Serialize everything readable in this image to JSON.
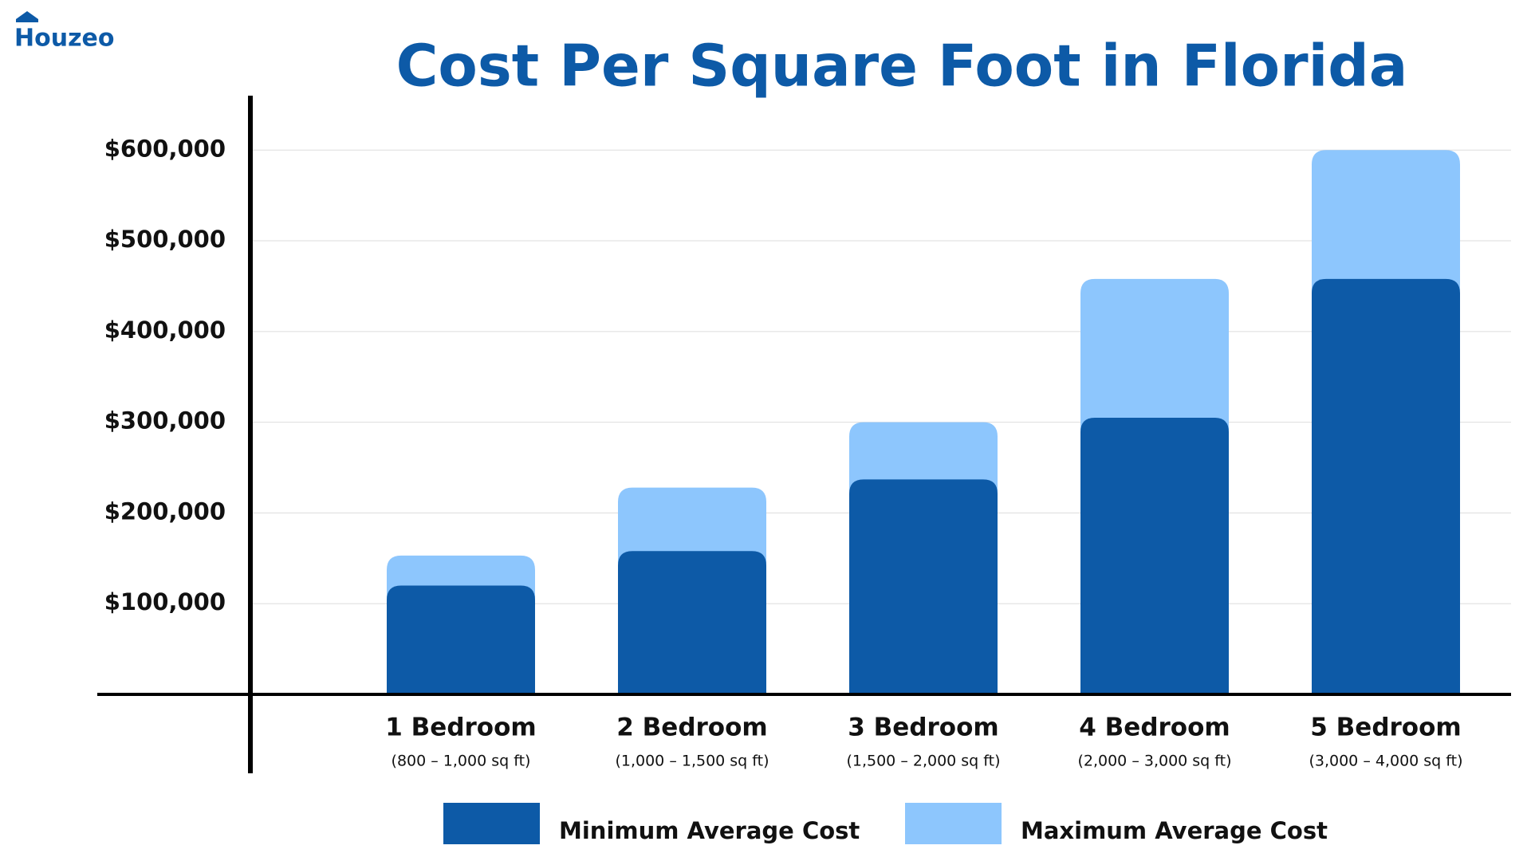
{
  "brand": "Houzeo",
  "chart_data": {
    "type": "overlap-bar",
    "title": "Cost Per Square Foot in Florida",
    "categories": [
      "1 Bedroom",
      "2 Bedroom",
      "3 Bedroom",
      "4 Bedroom",
      "5 Bedroom"
    ],
    "category_notes": [
      "(800 – 1,000 sq ft)",
      "(1,000 – 1,500 sq ft)",
      "(1,500 – 2,000 sq ft)",
      "(2,000 – 3,000 sq ft)",
      "(3,000 – 4,000 sq ft)"
    ],
    "series": [
      {
        "name": "Minimum Average Cost",
        "color": "#0d5aa7",
        "values": [
          120000,
          158000,
          237000,
          305000,
          458000
        ]
      },
      {
        "name": "Maximum Average Cost",
        "color": "#8dc6fd",
        "values": [
          153000,
          228000,
          300000,
          458000,
          600000
        ]
      }
    ],
    "ylim": [
      0,
      660000
    ],
    "yticks": [
      {
        "value": 100000,
        "label": "$100,000"
      },
      {
        "value": 200000,
        "label": "$200,000"
      },
      {
        "value": 300000,
        "label": "$300,000"
      },
      {
        "value": 400000,
        "label": "$400,000"
      },
      {
        "value": 500000,
        "label": "$500,000"
      },
      {
        "value": 600000,
        "label": "$600,000"
      }
    ],
    "grid": true
  }
}
